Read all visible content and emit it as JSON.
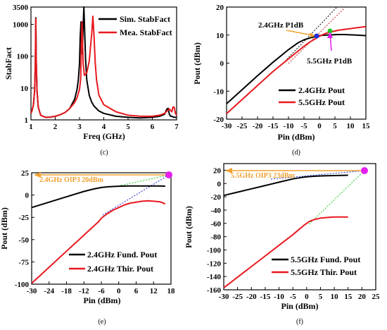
{
  "colors": {
    "black": "#000000",
    "red": "#e8191f",
    "orange": "#f0a030",
    "blue": "#1f2bd8",
    "green": "#1ec81e",
    "magenta": "#e61ef0",
    "dark_red": "#c0282d",
    "navy": "#1a2a8c"
  },
  "chart_data": [
    {
      "type": "line",
      "caption": "(c)",
      "xlabel": "Freq (GHz)",
      "ylabel": "StabFact",
      "xlim": [
        1,
        7
      ],
      "ylim": [
        1,
        3500
      ],
      "yscale": "log",
      "xticks": [
        "1",
        "2",
        "3",
        "4",
        "5",
        "6",
        "7"
      ],
      "yticks": [
        "1",
        "10",
        "100",
        "1000",
        "3500"
      ],
      "legend_placement": "top-right",
      "series": [
        {
          "name": "Sim.  StabFact",
          "color": "black",
          "x": [
            1.0,
            1.05,
            1.1,
            1.15,
            1.18,
            1.2,
            1.22,
            1.25,
            1.3,
            1.4,
            1.6,
            1.8,
            2.0,
            2.2,
            2.4,
            2.6,
            2.8,
            2.9,
            2.95,
            3.0,
            3.03,
            3.06,
            3.08,
            3.1,
            3.13,
            3.15,
            3.18,
            3.2,
            3.25,
            3.3,
            3.4,
            3.5,
            3.6,
            3.8,
            4.0,
            4.5,
            5.0,
            5.5,
            6.0,
            6.3,
            6.5,
            6.6,
            6.65,
            6.7,
            6.75,
            6.8,
            6.9,
            7.0
          ],
          "y": [
            1.6,
            2.0,
            3.0,
            8.0,
            60,
            1600,
            60,
            8,
            2.5,
            1.4,
            1.2,
            1.22,
            1.3,
            1.45,
            1.7,
            2.3,
            4.5,
            9,
            18,
            60,
            400,
            1200,
            300,
            120,
            300,
            1000,
            3500,
            1200,
            80,
            18,
            6,
            3.6,
            2.7,
            1.9,
            1.6,
            1.3,
            1.2,
            1.15,
            1.2,
            1.3,
            1.5,
            2.2,
            2.3,
            1.5,
            1.3,
            1.3,
            1.2,
            1.2
          ]
        },
        {
          "name": "Mea. StabFact",
          "color": "red",
          "x": [
            1.0,
            1.05,
            1.1,
            1.15,
            1.18,
            1.2,
            1.22,
            1.25,
            1.3,
            1.4,
            1.6,
            1.8,
            2.0,
            2.2,
            2.4,
            2.6,
            2.8,
            2.9,
            3.0,
            3.05,
            3.08,
            3.1,
            3.12,
            3.15,
            3.2,
            3.3,
            3.4,
            3.5,
            3.55,
            3.6,
            3.65,
            3.7,
            3.8,
            4.0,
            4.5,
            5.0,
            5.5,
            6.0,
            6.3,
            6.5,
            6.6,
            6.7,
            6.8,
            6.85,
            6.9,
            6.95,
            7.0
          ],
          "y": [
            1.6,
            2.0,
            3.0,
            8.0,
            60,
            1500,
            60,
            8,
            2.5,
            1.4,
            1.2,
            1.22,
            1.3,
            1.45,
            1.7,
            2.3,
            3.5,
            5,
            9,
            20,
            300,
            1200,
            400,
            60,
            25,
            30,
            70,
            500,
            1800,
            400,
            60,
            18,
            6,
            3,
            1.8,
            1.4,
            1.3,
            1.3,
            1.4,
            1.6,
            1.9,
            2.2,
            1.8,
            2.5,
            2.5,
            1.6,
            1.4
          ]
        }
      ]
    },
    {
      "type": "line",
      "caption": "(d)",
      "xlabel": "Pin (dBm)",
      "ylabel": "Pout (dBm)",
      "xlim": [
        -30,
        15
      ],
      "ylim": [
        -20,
        20
      ],
      "xticks": [
        "-30",
        "-25",
        "-20",
        "-15",
        "-10",
        "-5",
        "0",
        "5",
        "10",
        "15"
      ],
      "yticks": [
        "-20",
        "-10",
        "0",
        "10",
        "20"
      ],
      "legend_placement": "bottom-right",
      "annotations": [
        "2.4GHz P1dB",
        "5.5GHz P1dB"
      ],
      "series": [
        {
          "name": "2.4GHz Pout",
          "color": "black",
          "x": [
            -30,
            -25,
            -20,
            -15,
            -10,
            -7,
            -5,
            -3,
            -1,
            0,
            2,
            4,
            6,
            8,
            10,
            12,
            15
          ],
          "y": [
            -14.5,
            -9.5,
            -4.5,
            0.3,
            4.8,
            7.2,
            8.3,
            9.0,
            9.5,
            9.8,
            10.0,
            10.1,
            10.2,
            10.2,
            10.1,
            10.0,
            9.8
          ]
        },
        {
          "name": "5.5GHz Pout",
          "color": "red",
          "x": [
            -30,
            -25,
            -20,
            -15,
            -10,
            -5,
            -3,
            -1,
            0,
            2,
            4,
            6,
            8,
            10,
            12,
            15
          ],
          "y": [
            -18,
            -13,
            -8,
            -3,
            1.5,
            6,
            7.6,
            8.9,
            9.6,
            10.6,
            11.2,
            11.7,
            12.0,
            12.3,
            12.6,
            13.0
          ]
        }
      ]
    },
    {
      "type": "line",
      "caption": "(e)",
      "xlabel": "Pin (dBm)",
      "ylabel": "Pout (dBm)",
      "xlim": [
        -30,
        18
      ],
      "ylim": [
        -100,
        25
      ],
      "xticks": [
        "-30",
        "-24",
        "-18",
        "-12",
        "-6",
        "0",
        "6",
        "12",
        "18"
      ],
      "yticks": [
        "-100",
        "-75",
        "-50",
        "-25",
        "0",
        "25"
      ],
      "legend_placement": "bottom-right",
      "annotations": [
        "2.4GHz OIP3 20dBm"
      ],
      "series": [
        {
          "name": "2.4GHz Fund. Pout",
          "color": "black",
          "x": [
            -30,
            -24,
            -18,
            -12,
            -9,
            -6,
            -4,
            -2,
            0,
            3,
            6,
            10,
            14,
            16
          ],
          "y": [
            -14,
            -8,
            -2,
            4,
            6.5,
            8.5,
            9.2,
            9.6,
            9.9,
            10.1,
            10.2,
            10.2,
            10.1,
            10.0
          ]
        },
        {
          "name": "2.4GHz Thir.  Pout",
          "color": "red",
          "x": [
            -30,
            -24,
            -18,
            -12,
            -9,
            -7,
            -6,
            -4,
            -2,
            0,
            2,
            4,
            6,
            8,
            10,
            12,
            14,
            15,
            16
          ],
          "y": [
            -99,
            -81,
            -63,
            -45,
            -36,
            -30,
            -26,
            -21,
            -17,
            -14,
            -11,
            -9,
            -8,
            -7,
            -6.5,
            -7,
            -7.5,
            -8.5,
            -10
          ]
        }
      ]
    },
    {
      "type": "line",
      "caption": "(f)",
      "xlabel": "Pin (dBm)",
      "ylabel": "Pout (dBm)",
      "xlim": [
        -30,
        25
      ],
      "ylim": [
        -160,
        30
      ],
      "xticks": [
        "-30",
        "-25",
        "-20",
        "-15",
        "-10",
        "-5",
        "0",
        "5",
        "10",
        "15",
        "20",
        "25"
      ],
      "yticks": [
        "-160",
        "-140",
        "-120",
        "-100",
        "-80",
        "-60",
        "-40",
        "-20",
        "0",
        "20"
      ],
      "legend_placement": "bottom-right",
      "annotations": [
        "5.5GHz OIP3 23dBm"
      ],
      "series": [
        {
          "name": "5.5GHz Fund. Pout",
          "color": "black",
          "x": [
            -30,
            -25,
            -20,
            -15,
            -10,
            -5,
            -2,
            0,
            3,
            6,
            10,
            15
          ],
          "y": [
            -18,
            -13,
            -8,
            -3,
            2,
            7,
            9,
            10,
            11,
            11.5,
            12,
            12.5
          ]
        },
        {
          "name": "5.5GHz Thir.  Pout",
          "color": "red",
          "x": [
            -30,
            -25,
            -20,
            -15,
            -10,
            -5,
            -3,
            -1,
            0,
            1,
            3,
            5,
            8,
            10,
            15
          ],
          "y": [
            -157,
            -141,
            -125,
            -109,
            -93,
            -77,
            -70,
            -63,
            -60,
            -57,
            -54,
            -52,
            -51,
            -50.5,
            -50.5
          ]
        }
      ]
    }
  ]
}
